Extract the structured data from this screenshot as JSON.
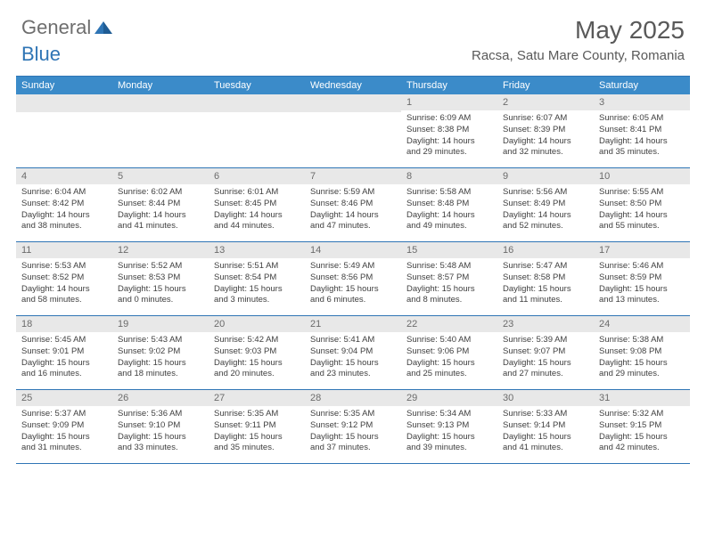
{
  "brand": {
    "part1": "General",
    "part2": "Blue"
  },
  "title": "May 2025",
  "location": "Racsa, Satu Mare County, Romania",
  "colors": {
    "header_bg": "#3b8bc9",
    "accent": "#2f75b5",
    "text_muted": "#595959",
    "daynum_bg": "#e8e8e8"
  },
  "weekdays": [
    "Sunday",
    "Monday",
    "Tuesday",
    "Wednesday",
    "Thursday",
    "Friday",
    "Saturday"
  ],
  "weeks": [
    [
      null,
      null,
      null,
      null,
      {
        "n": "1",
        "sr": "Sunrise: 6:09 AM",
        "ss": "Sunset: 8:38 PM",
        "d1": "Daylight: 14 hours",
        "d2": "and 29 minutes."
      },
      {
        "n": "2",
        "sr": "Sunrise: 6:07 AM",
        "ss": "Sunset: 8:39 PM",
        "d1": "Daylight: 14 hours",
        "d2": "and 32 minutes."
      },
      {
        "n": "3",
        "sr": "Sunrise: 6:05 AM",
        "ss": "Sunset: 8:41 PM",
        "d1": "Daylight: 14 hours",
        "d2": "and 35 minutes."
      }
    ],
    [
      {
        "n": "4",
        "sr": "Sunrise: 6:04 AM",
        "ss": "Sunset: 8:42 PM",
        "d1": "Daylight: 14 hours",
        "d2": "and 38 minutes."
      },
      {
        "n": "5",
        "sr": "Sunrise: 6:02 AM",
        "ss": "Sunset: 8:44 PM",
        "d1": "Daylight: 14 hours",
        "d2": "and 41 minutes."
      },
      {
        "n": "6",
        "sr": "Sunrise: 6:01 AM",
        "ss": "Sunset: 8:45 PM",
        "d1": "Daylight: 14 hours",
        "d2": "and 44 minutes."
      },
      {
        "n": "7",
        "sr": "Sunrise: 5:59 AM",
        "ss": "Sunset: 8:46 PM",
        "d1": "Daylight: 14 hours",
        "d2": "and 47 minutes."
      },
      {
        "n": "8",
        "sr": "Sunrise: 5:58 AM",
        "ss": "Sunset: 8:48 PM",
        "d1": "Daylight: 14 hours",
        "d2": "and 49 minutes."
      },
      {
        "n": "9",
        "sr": "Sunrise: 5:56 AM",
        "ss": "Sunset: 8:49 PM",
        "d1": "Daylight: 14 hours",
        "d2": "and 52 minutes."
      },
      {
        "n": "10",
        "sr": "Sunrise: 5:55 AM",
        "ss": "Sunset: 8:50 PM",
        "d1": "Daylight: 14 hours",
        "d2": "and 55 minutes."
      }
    ],
    [
      {
        "n": "11",
        "sr": "Sunrise: 5:53 AM",
        "ss": "Sunset: 8:52 PM",
        "d1": "Daylight: 14 hours",
        "d2": "and 58 minutes."
      },
      {
        "n": "12",
        "sr": "Sunrise: 5:52 AM",
        "ss": "Sunset: 8:53 PM",
        "d1": "Daylight: 15 hours",
        "d2": "and 0 minutes."
      },
      {
        "n": "13",
        "sr": "Sunrise: 5:51 AM",
        "ss": "Sunset: 8:54 PM",
        "d1": "Daylight: 15 hours",
        "d2": "and 3 minutes."
      },
      {
        "n": "14",
        "sr": "Sunrise: 5:49 AM",
        "ss": "Sunset: 8:56 PM",
        "d1": "Daylight: 15 hours",
        "d2": "and 6 minutes."
      },
      {
        "n": "15",
        "sr": "Sunrise: 5:48 AM",
        "ss": "Sunset: 8:57 PM",
        "d1": "Daylight: 15 hours",
        "d2": "and 8 minutes."
      },
      {
        "n": "16",
        "sr": "Sunrise: 5:47 AM",
        "ss": "Sunset: 8:58 PM",
        "d1": "Daylight: 15 hours",
        "d2": "and 11 minutes."
      },
      {
        "n": "17",
        "sr": "Sunrise: 5:46 AM",
        "ss": "Sunset: 8:59 PM",
        "d1": "Daylight: 15 hours",
        "d2": "and 13 minutes."
      }
    ],
    [
      {
        "n": "18",
        "sr": "Sunrise: 5:45 AM",
        "ss": "Sunset: 9:01 PM",
        "d1": "Daylight: 15 hours",
        "d2": "and 16 minutes."
      },
      {
        "n": "19",
        "sr": "Sunrise: 5:43 AM",
        "ss": "Sunset: 9:02 PM",
        "d1": "Daylight: 15 hours",
        "d2": "and 18 minutes."
      },
      {
        "n": "20",
        "sr": "Sunrise: 5:42 AM",
        "ss": "Sunset: 9:03 PM",
        "d1": "Daylight: 15 hours",
        "d2": "and 20 minutes."
      },
      {
        "n": "21",
        "sr": "Sunrise: 5:41 AM",
        "ss": "Sunset: 9:04 PM",
        "d1": "Daylight: 15 hours",
        "d2": "and 23 minutes."
      },
      {
        "n": "22",
        "sr": "Sunrise: 5:40 AM",
        "ss": "Sunset: 9:06 PM",
        "d1": "Daylight: 15 hours",
        "d2": "and 25 minutes."
      },
      {
        "n": "23",
        "sr": "Sunrise: 5:39 AM",
        "ss": "Sunset: 9:07 PM",
        "d1": "Daylight: 15 hours",
        "d2": "and 27 minutes."
      },
      {
        "n": "24",
        "sr": "Sunrise: 5:38 AM",
        "ss": "Sunset: 9:08 PM",
        "d1": "Daylight: 15 hours",
        "d2": "and 29 minutes."
      }
    ],
    [
      {
        "n": "25",
        "sr": "Sunrise: 5:37 AM",
        "ss": "Sunset: 9:09 PM",
        "d1": "Daylight: 15 hours",
        "d2": "and 31 minutes."
      },
      {
        "n": "26",
        "sr": "Sunrise: 5:36 AM",
        "ss": "Sunset: 9:10 PM",
        "d1": "Daylight: 15 hours",
        "d2": "and 33 minutes."
      },
      {
        "n": "27",
        "sr": "Sunrise: 5:35 AM",
        "ss": "Sunset: 9:11 PM",
        "d1": "Daylight: 15 hours",
        "d2": "and 35 minutes."
      },
      {
        "n": "28",
        "sr": "Sunrise: 5:35 AM",
        "ss": "Sunset: 9:12 PM",
        "d1": "Daylight: 15 hours",
        "d2": "and 37 minutes."
      },
      {
        "n": "29",
        "sr": "Sunrise: 5:34 AM",
        "ss": "Sunset: 9:13 PM",
        "d1": "Daylight: 15 hours",
        "d2": "and 39 minutes."
      },
      {
        "n": "30",
        "sr": "Sunrise: 5:33 AM",
        "ss": "Sunset: 9:14 PM",
        "d1": "Daylight: 15 hours",
        "d2": "and 41 minutes."
      },
      {
        "n": "31",
        "sr": "Sunrise: 5:32 AM",
        "ss": "Sunset: 9:15 PM",
        "d1": "Daylight: 15 hours",
        "d2": "and 42 minutes."
      }
    ]
  ]
}
